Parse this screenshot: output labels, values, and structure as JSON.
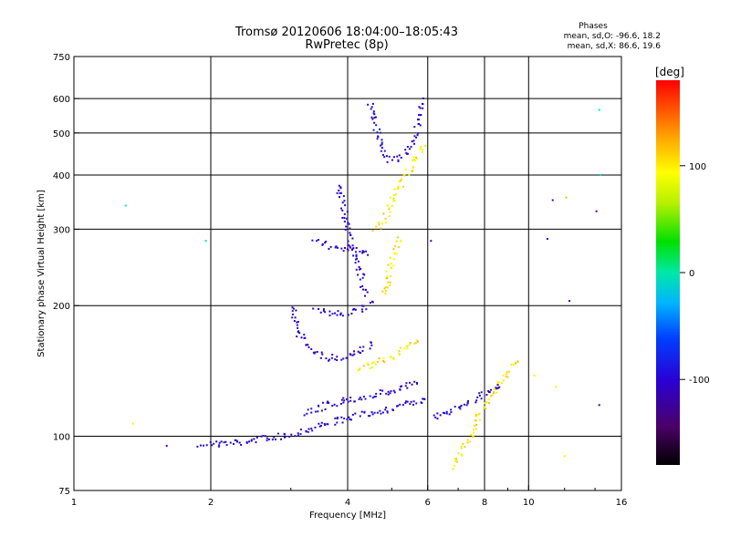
{
  "chart_data": {
    "type": "scatter",
    "title": "Tromsø 20120606 18:04:00–18:05:43",
    "subtitle": "RwPretec (8p)",
    "xlabel": "Frequency [MHz]",
    "ylabel": "Stationary phase Virtual Height [km]",
    "x_scale": "log",
    "y_scale": "log",
    "xlim": [
      1,
      16
    ],
    "ylim": [
      75,
      750
    ],
    "x_ticks": [
      1,
      2,
      4,
      6,
      8,
      10,
      16
    ],
    "y_ticks": [
      75,
      100,
      200,
      300,
      400,
      500,
      600,
      750
    ],
    "x_grid": [
      2,
      4,
      6,
      8,
      10
    ],
    "y_grid": [
      100,
      200,
      300,
      400,
      500,
      600
    ],
    "stats": {
      "heading": "Phases",
      "line_o": "mean, sd,O: -96.6, 18.2",
      "line_x": "mean, sd,X: 86.6, 19.6"
    },
    "colorbar": {
      "label": "[deg]",
      "range": [
        -180,
        180
      ],
      "ticks": [
        -100,
        0,
        100
      ],
      "colormap": "rainbow (black → purple → blue → cyan → green → yellow → orange → red)"
    },
    "traces": [
      {
        "name": "",
        "phase": -100,
        "points": [
          [
            1.9,
            96
          ],
          [
            2.1,
            96
          ],
          [
            2.4,
            97
          ],
          [
            2.6,
            99
          ],
          [
            2.9,
            100
          ],
          [
            3.2,
            103
          ],
          [
            3.6,
            107
          ],
          [
            4.0,
            110
          ],
          [
            4.5,
            113
          ],
          [
            5.0,
            116
          ],
          [
            5.5,
            119
          ],
          [
            6.0,
            121
          ]
        ]
      },
      {
        "name": "",
        "phase": -100,
        "points": [
          [
            3.2,
            113
          ],
          [
            3.6,
            118
          ],
          [
            4.0,
            121
          ],
          [
            4.5,
            124
          ],
          [
            5.0,
            127
          ],
          [
            5.5,
            131
          ],
          [
            5.8,
            133
          ]
        ]
      },
      {
        "name": "",
        "phase": -100,
        "points": [
          [
            3.0,
            200
          ],
          [
            3.1,
            175
          ],
          [
            3.3,
            160
          ],
          [
            3.5,
            153
          ],
          [
            3.8,
            151
          ],
          [
            4.0,
            153
          ],
          [
            4.3,
            158
          ],
          [
            4.6,
            163
          ]
        ]
      },
      {
        "name": "",
        "phase": -100,
        "points": [
          [
            3.4,
            195
          ],
          [
            3.8,
            192
          ],
          [
            4.1,
            193
          ],
          [
            4.4,
            198
          ],
          [
            4.6,
            205
          ]
        ]
      },
      {
        "name": "",
        "phase": -100,
        "points": [
          [
            3.4,
            280
          ],
          [
            3.6,
            275
          ],
          [
            3.9,
            272
          ],
          [
            4.1,
            270
          ],
          [
            4.3,
            265
          ],
          [
            4.5,
            262
          ]
        ]
      },
      {
        "name": "",
        "phase": -100,
        "points": [
          [
            3.8,
            380
          ],
          [
            3.9,
            340
          ],
          [
            4.0,
            310
          ],
          [
            4.0,
            290
          ],
          [
            4.1,
            270
          ],
          [
            4.2,
            250
          ],
          [
            4.3,
            230
          ],
          [
            4.4,
            210
          ]
        ]
      },
      {
        "name": "",
        "phase": -100,
        "points": [
          [
            4.5,
            590
          ],
          [
            4.6,
            530
          ],
          [
            4.7,
            480
          ],
          [
            4.8,
            450
          ],
          [
            4.9,
            435
          ],
          [
            5.1,
            432
          ],
          [
            5.3,
            445
          ],
          [
            5.5,
            470
          ],
          [
            5.7,
            510
          ],
          [
            5.8,
            600
          ]
        ]
      },
      {
        "name": "",
        "phase": 100,
        "points": [
          [
            4.2,
            143
          ],
          [
            4.6,
            147
          ],
          [
            5.0,
            152
          ],
          [
            5.4,
            160
          ],
          [
            5.8,
            168
          ]
        ]
      },
      {
        "name": "",
        "phase": 100,
        "points": [
          [
            4.6,
            300
          ],
          [
            4.8,
            315
          ],
          [
            5.0,
            345
          ],
          [
            5.3,
            390
          ],
          [
            5.6,
            430
          ],
          [
            5.9,
            470
          ]
        ]
      },
      {
        "name": "",
        "phase": 100,
        "points": [
          [
            4.8,
            210
          ],
          [
            4.9,
            230
          ],
          [
            5.0,
            250
          ],
          [
            5.1,
            270
          ],
          [
            5.2,
            290
          ]
        ]
      },
      {
        "name": "",
        "phase": 100,
        "points": [
          [
            6.8,
            85
          ],
          [
            7.2,
            95
          ],
          [
            7.6,
            105
          ],
          [
            8.0,
            118
          ],
          [
            8.5,
            130
          ],
          [
            9.0,
            140
          ],
          [
            9.5,
            152
          ]
        ]
      },
      {
        "name": "",
        "phase": -100,
        "points": [
          [
            6.2,
            110
          ],
          [
            6.6,
            113
          ],
          [
            7.0,
            117
          ],
          [
            7.6,
            122
          ],
          [
            8.2,
            127
          ],
          [
            8.8,
            132
          ]
        ]
      }
    ],
    "isolated_points": [
      {
        "x": 1.3,
        "y": 340,
        "phase": 0
      },
      {
        "x": 1.35,
        "y": 107,
        "phase": 100
      },
      {
        "x": 1.6,
        "y": 95,
        "phase": -100
      },
      {
        "x": 1.95,
        "y": 282,
        "phase": 0
      },
      {
        "x": 6.1,
        "y": 282,
        "phase": -100
      },
      {
        "x": 11.0,
        "y": 285,
        "phase": -100
      },
      {
        "x": 11.3,
        "y": 350,
        "phase": -100
      },
      {
        "x": 12.1,
        "y": 355,
        "phase": 60
      },
      {
        "x": 12.3,
        "y": 205,
        "phase": -120
      },
      {
        "x": 14.3,
        "y": 565,
        "phase": 0
      },
      {
        "x": 14.4,
        "y": 400,
        "phase": 0
      },
      {
        "x": 14.1,
        "y": 330,
        "phase": -110
      },
      {
        "x": 14.3,
        "y": 118,
        "phase": -120
      },
      {
        "x": 10.3,
        "y": 138,
        "phase": 100
      },
      {
        "x": 11.5,
        "y": 130,
        "phase": 100
      },
      {
        "x": 12.0,
        "y": 90,
        "phase": 100
      }
    ]
  }
}
